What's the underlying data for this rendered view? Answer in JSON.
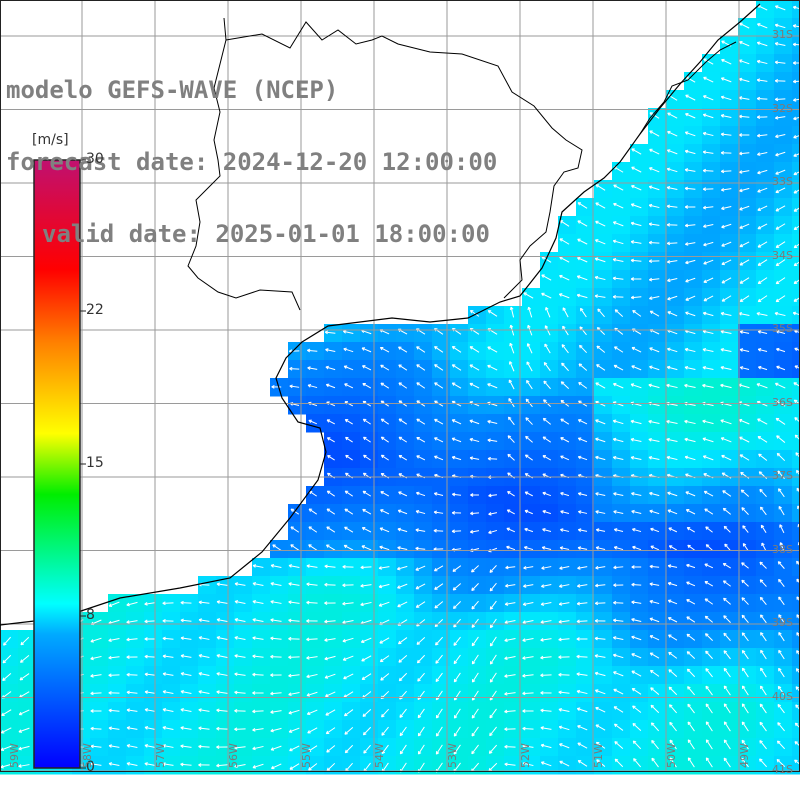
{
  "header": {
    "line1": "modelo GEFS-WAVE (NCEP)",
    "line2": "forecast date: 2024-12-20 12:00:00",
    "line3": "valid date: 2025-01-01 18:00:00"
  },
  "colorbar": {
    "unit": "[m/s]",
    "ticks": [
      "30",
      "22",
      "15",
      "8",
      "0"
    ],
    "colors": [
      "#0000ff",
      "#00aaff",
      "#00ffff",
      "#00ff00",
      "#ffff00",
      "#ff8000",
      "#ff0000",
      "#c01070"
    ]
  },
  "map": {
    "region": "Uruguay / Rio de la Plata / southern Brazil coast",
    "lat_labels": [
      "31S",
      "32S",
      "33S",
      "34S",
      "35S",
      "36S",
      "37S",
      "38S",
      "39S",
      "40S",
      "41S"
    ],
    "lon_labels": [
      "59W",
      "58W",
      "57W",
      "56W",
      "55W",
      "54W",
      "53W",
      "52W",
      "51W",
      "50W",
      "49W"
    ],
    "land_color": "#ffffff",
    "grid_color": "#9a9a9a",
    "coast_color": "#000000",
    "arrow_color": "#ffffff"
  }
}
